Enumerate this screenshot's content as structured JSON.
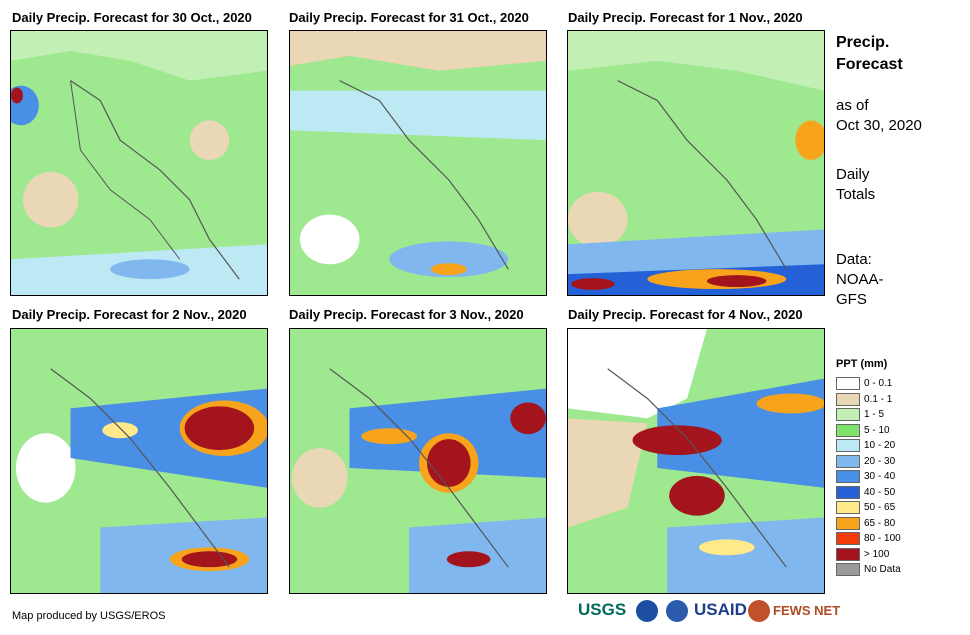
{
  "panels": [
    {
      "title": "Daily Precip. Forecast for 30 Oct., 2020",
      "scenario": "p1"
    },
    {
      "title": "Daily Precip. Forecast for 31 Oct., 2020",
      "scenario": "p2"
    },
    {
      "title": "Daily Precip. Forecast for 1 Nov., 2020",
      "scenario": "p3"
    },
    {
      "title": "Daily Precip. Forecast for 2 Nov., 2020",
      "scenario": "p4"
    },
    {
      "title": "Daily Precip. Forecast for 3 Nov., 2020",
      "scenario": "p5"
    },
    {
      "title": "Daily Precip. Forecast for 4 Nov., 2020",
      "scenario": "p6"
    }
  ],
  "sidebar": {
    "title_line1": "Precip.",
    "title_line2": "Forecast",
    "asof_line1": "as of",
    "asof_line2": "Oct 30, 2020",
    "totals_line1": "Daily",
    "totals_line2": "Totals",
    "data_line1": "Data:",
    "data_line2": "NOAA-",
    "data_line3": "GFS"
  },
  "legend": {
    "title": "PPT (mm)",
    "items": [
      {
        "label": "0 - 0.1",
        "color": "#ffffff"
      },
      {
        "label": "0.1 - 1",
        "color": "#ead7b5"
      },
      {
        "label": "1 - 5",
        "color": "#c2f0b4"
      },
      {
        "label": "5 - 10",
        "color": "#7ee36a"
      },
      {
        "label": "10 - 20",
        "color": "#bde9f5"
      },
      {
        "label": "20 - 30",
        "color": "#7fb7ee"
      },
      {
        "label": "30 - 40",
        "color": "#4a8fe6"
      },
      {
        "label": "40 - 50",
        "color": "#2461d6"
      },
      {
        "label": "50 - 65",
        "color": "#ffe98a"
      },
      {
        "label": "65 - 80",
        "color": "#f7a31c"
      },
      {
        "label": "80 - 100",
        "color": "#f23a0a"
      },
      {
        "label": "> 100",
        "color": "#a3141c"
      },
      {
        "label": "No Data",
        "color": "#9a9a9a"
      }
    ]
  },
  "footer": {
    "credit": "Map produced by USGS/EROS"
  },
  "logos": {
    "usgs": "USGS",
    "usaid": "USAID",
    "fewsnet": "FEWS NET"
  }
}
